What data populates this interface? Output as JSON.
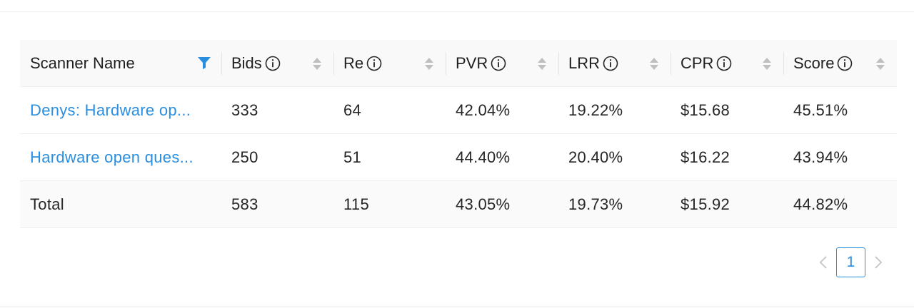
{
  "table": {
    "columns": [
      {
        "label": "Scanner Name",
        "info": false,
        "control": "filter"
      },
      {
        "label": "Bids",
        "info": true,
        "control": "sort"
      },
      {
        "label": "Re",
        "info": true,
        "control": "sort"
      },
      {
        "label": "PVR",
        "info": true,
        "control": "sort"
      },
      {
        "label": "LRR",
        "info": true,
        "control": "sort"
      },
      {
        "label": "CPR",
        "info": true,
        "control": "sort"
      },
      {
        "label": "Score",
        "info": true,
        "control": "sort"
      }
    ],
    "rows": [
      {
        "name": "Denys: Hardware op...",
        "bids": "333",
        "re": "64",
        "pvr": "42.04%",
        "lrr": "19.22%",
        "cpr": "$15.68",
        "score": "45.51%"
      },
      {
        "name": "Hardware open ques...",
        "bids": "250",
        "re": "51",
        "pvr": "44.40%",
        "lrr": "20.40%",
        "cpr": "$16.22",
        "score": "43.94%"
      }
    ],
    "total": {
      "name": "Total",
      "bids": "583",
      "re": "115",
      "pvr": "43.05%",
      "lrr": "19.73%",
      "cpr": "$15.92",
      "score": "44.82%"
    }
  },
  "pagination": {
    "current_page": "1"
  },
  "colors": {
    "accent": "#2a8ee0",
    "header_bg": "#f9f9f9",
    "icon_gray": "#bfbfbf"
  },
  "icons": {
    "filter": "filter-icon",
    "info": "info-icon",
    "sort": "sort-icon",
    "prev": "chevron-left-icon",
    "next": "chevron-right-icon"
  }
}
